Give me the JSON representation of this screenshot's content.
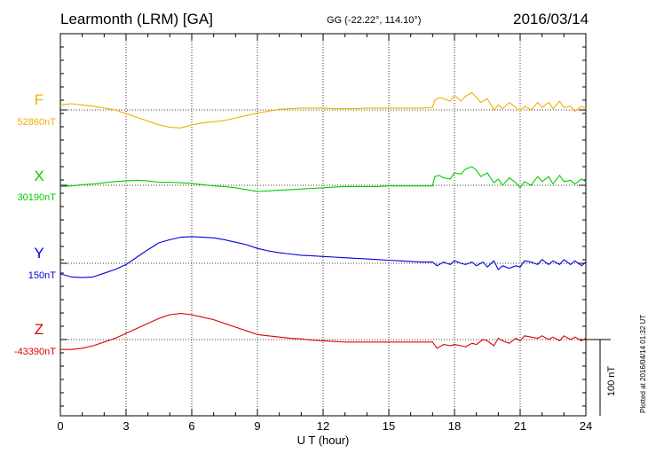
{
  "header": {
    "station": "Learmonth (LRM)  [GA]",
    "coords": "GG (-22.22°, 114.10°)",
    "date": "2016/03/14"
  },
  "plotted_note": "Plotted at 2016/04/14 01:32 UT",
  "scale_bar": {
    "label": "100 nT",
    "value_nT": 100
  },
  "chart_data": {
    "type": "line",
    "xlabel": "U T (hour)",
    "xlim": [
      0,
      24
    ],
    "xticks": [
      "0",
      "3",
      "6",
      "9",
      "12",
      "15",
      "18",
      "21",
      "24"
    ],
    "grid": true,
    "series": [
      {
        "name": "F",
        "baseline_label": "52860nT",
        "baseline_nT": 52860,
        "color": "#f0b000",
        "x": [
          0,
          0.5,
          1,
          1.5,
          2,
          2.5,
          3,
          3.5,
          4,
          4.5,
          5,
          5.5,
          6,
          6.5,
          7,
          7.5,
          8,
          8.5,
          9,
          9.5,
          10,
          10.5,
          11,
          11.5,
          12,
          12.5,
          13,
          13.5,
          14,
          14.5,
          15,
          15.5,
          16,
          16.5,
          17,
          17.1,
          17.3,
          17.5,
          17.8,
          18,
          18.3,
          18.5,
          18.8,
          19,
          19.2,
          19.5,
          19.8,
          20,
          20.2,
          20.5,
          20.8,
          21,
          21.2,
          21.5,
          21.8,
          22,
          22.3,
          22.5,
          22.8,
          23,
          23.3,
          23.5,
          23.8,
          24
        ],
        "y": [
          8,
          10,
          8,
          6,
          3,
          0,
          -6,
          -12,
          -18,
          -24,
          -28,
          -29,
          -24,
          -21,
          -19,
          -17,
          -13,
          -9,
          -5,
          -2,
          1,
          2,
          3,
          3,
          3,
          2,
          2,
          2,
          3,
          3,
          3,
          3,
          3,
          3,
          4,
          16,
          20,
          18,
          14,
          24,
          14,
          22,
          28,
          20,
          12,
          18,
          0,
          8,
          2,
          12,
          4,
          -2,
          6,
          0,
          12,
          4,
          12,
          2,
          14,
          4,
          6,
          -2,
          6,
          2
        ]
      },
      {
        "name": "X",
        "baseline_label": "30190nT",
        "baseline_nT": 30190,
        "color": "#00cc00",
        "x": [
          0,
          0.5,
          1,
          1.5,
          2,
          2.5,
          3,
          3.5,
          4,
          4.5,
          5,
          5.5,
          6,
          6.5,
          7,
          7.5,
          8,
          8.5,
          9,
          9.5,
          10,
          10.5,
          11,
          11.5,
          12,
          12.5,
          13,
          13.5,
          14,
          14.5,
          15,
          15.5,
          16,
          16.5,
          17,
          17.1,
          17.3,
          17.5,
          17.8,
          18,
          18.3,
          18.5,
          18.8,
          19,
          19.2,
          19.5,
          19.8,
          20,
          20.2,
          20.5,
          20.8,
          21,
          21.2,
          21.5,
          21.8,
          22,
          22.3,
          22.5,
          22.8,
          23,
          23.3,
          23.5,
          23.8,
          24
        ],
        "y": [
          -2,
          -1,
          1,
          2,
          4,
          6,
          7,
          8,
          7,
          5,
          5,
          4,
          3,
          1,
          -1,
          -2,
          -4,
          -7,
          -10,
          -9,
          -8,
          -7,
          -6,
          -5,
          -4,
          -3,
          -2,
          -2,
          -2,
          -2,
          -1,
          -1,
          -1,
          -1,
          -1,
          14,
          16,
          12,
          10,
          20,
          18,
          26,
          30,
          24,
          14,
          20,
          4,
          10,
          0,
          12,
          4,
          -4,
          6,
          0,
          14,
          6,
          14,
          2,
          16,
          6,
          8,
          2,
          10,
          6
        ]
      },
      {
        "name": "Y",
        "baseline_label": "150nT",
        "baseline_nT": 150,
        "color": "#0000dd",
        "x": [
          0,
          0.5,
          1,
          1.5,
          2,
          2.5,
          3,
          3.5,
          4,
          4.5,
          5,
          5.5,
          6,
          6.5,
          7,
          7.5,
          8,
          8.5,
          9,
          9.5,
          10,
          10.5,
          11,
          11.5,
          12,
          12.5,
          13,
          13.5,
          14,
          14.5,
          15,
          15.5,
          16,
          16.5,
          17,
          17.2,
          17.5,
          17.8,
          18,
          18.3,
          18.5,
          18.8,
          19,
          19.3,
          19.5,
          19.8,
          20,
          20.2,
          20.5,
          20.8,
          21,
          21.2,
          21.5,
          21.8,
          22,
          22.3,
          22.5,
          22.8,
          23,
          23.3,
          23.5,
          23.8,
          24
        ],
        "y": [
          -17,
          -22,
          -23,
          -22,
          -16,
          -10,
          -2,
          10,
          22,
          33,
          38,
          42,
          43,
          42,
          41,
          38,
          34,
          30,
          24,
          20,
          17,
          15,
          13,
          12,
          11,
          10,
          9,
          8,
          7,
          6,
          5,
          4,
          3,
          2,
          2,
          -4,
          2,
          -2,
          4,
          0,
          -2,
          2,
          -4,
          2,
          -6,
          4,
          -10,
          -4,
          -8,
          -4,
          -6,
          4,
          2,
          -2,
          6,
          -2,
          4,
          -2,
          6,
          -2,
          4,
          -4,
          2
        ]
      },
      {
        "name": "Z",
        "baseline_label": "-43390nT",
        "baseline_nT": -43390,
        "color": "#dd0000",
        "x": [
          0,
          0.5,
          1,
          1.5,
          2,
          2.5,
          3,
          3.5,
          4,
          4.5,
          5,
          5.5,
          6,
          6.5,
          7,
          7.5,
          8,
          8.5,
          9,
          9.5,
          10,
          10.5,
          11,
          11.5,
          12,
          12.5,
          13,
          13.5,
          14,
          14.5,
          15,
          15.5,
          16,
          16.5,
          17,
          17.2,
          17.5,
          17.8,
          18,
          18.3,
          18.5,
          18.8,
          19,
          19.3,
          19.5,
          19.8,
          20,
          20.2,
          20.5,
          20.8,
          21,
          21.2,
          21.5,
          21.8,
          22,
          22.3,
          22.5,
          22.8,
          23,
          23.3,
          23.5,
          23.8,
          24
        ],
        "y": [
          -16,
          -16,
          -14,
          -10,
          -4,
          2,
          10,
          18,
          26,
          34,
          40,
          42,
          40,
          36,
          32,
          26,
          20,
          14,
          8,
          6,
          4,
          2,
          1,
          -1,
          -2,
          -3,
          -4,
          -4,
          -4,
          -4,
          -4,
          -4,
          -4,
          -4,
          -4,
          -14,
          -8,
          -10,
          -8,
          -10,
          -12,
          -6,
          -8,
          0,
          -2,
          -10,
          2,
          -2,
          -6,
          2,
          -2,
          6,
          4,
          2,
          6,
          0,
          4,
          -2,
          6,
          0,
          4,
          -2,
          2
        ]
      }
    ]
  }
}
